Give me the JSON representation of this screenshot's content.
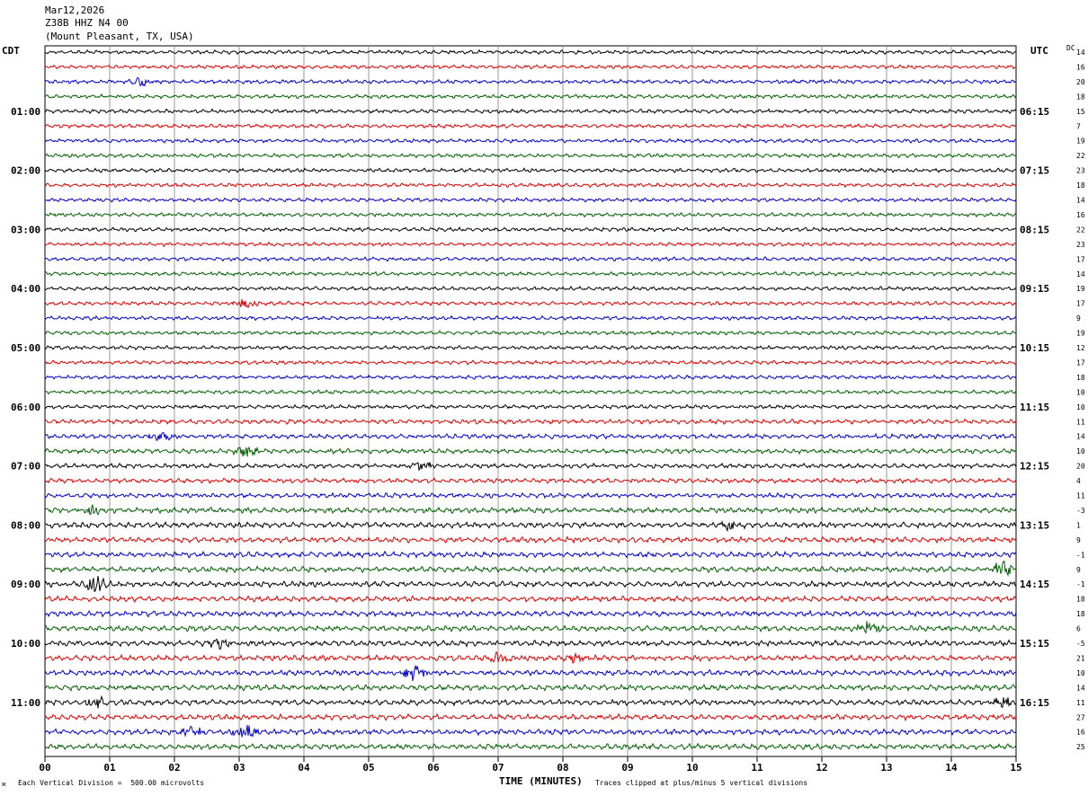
{
  "header": {
    "date": "Mar12,2026",
    "station": "Z38B HHZ N4 00",
    "location": "(Mount Pleasant, TX, USA)"
  },
  "left_timezone": "CDT",
  "right_timezone": "UTC",
  "dc_label": "DC",
  "footer": {
    "scale_note": "Each Vertical Division =  500.00 microvolts",
    "clip_note": "Traces clipped at plus/minus 5 vertical divisions",
    "corner_mark": "⌘"
  },
  "colors": {
    "cycle": [
      "#000000",
      "#e00000",
      "#0000d0",
      "#006000"
    ],
    "grid": "#808080"
  },
  "chart_data": {
    "type": "line",
    "title": "",
    "xlabel": "TIME (MINUTES)",
    "xlim": [
      0,
      15
    ],
    "x_ticks": [
      "00",
      "01",
      "02",
      "03",
      "04",
      "05",
      "06",
      "07",
      "08",
      "09",
      "10",
      "11",
      "12",
      "13",
      "14",
      "15"
    ],
    "num_traces": 48,
    "left_hour_labels": [
      {
        "trace": 4,
        "label": "01:00"
      },
      {
        "trace": 8,
        "label": "02:00"
      },
      {
        "trace": 12,
        "label": "03:00"
      },
      {
        "trace": 16,
        "label": "04:00"
      },
      {
        "trace": 20,
        "label": "05:00"
      },
      {
        "trace": 24,
        "label": "06:00"
      },
      {
        "trace": 28,
        "label": "07:00"
      },
      {
        "trace": 32,
        "label": "08:00"
      },
      {
        "trace": 36,
        "label": "09:00"
      },
      {
        "trace": 40,
        "label": "10:00"
      },
      {
        "trace": 44,
        "label": "11:00"
      }
    ],
    "right_hour_labels": [
      {
        "trace": 4,
        "label": "06:15"
      },
      {
        "trace": 8,
        "label": "07:15"
      },
      {
        "trace": 12,
        "label": "08:15"
      },
      {
        "trace": 16,
        "label": "09:15"
      },
      {
        "trace": 20,
        "label": "10:15"
      },
      {
        "trace": 24,
        "label": "11:15"
      },
      {
        "trace": 28,
        "label": "12:15"
      },
      {
        "trace": 32,
        "label": "13:15"
      },
      {
        "trace": 36,
        "label": "14:15"
      },
      {
        "trace": 40,
        "label": "15:15"
      },
      {
        "trace": 44,
        "label": "16:15"
      }
    ],
    "dc_offsets": [
      "14",
      "16",
      "20",
      "18",
      "15",
      "7",
      "19",
      "22",
      "23",
      "18",
      "14",
      "16",
      "22",
      "23",
      "17",
      "14",
      "19",
      "17",
      "9",
      "19",
      "12",
      "17",
      "18",
      "10",
      "10",
      "11",
      "14",
      "10",
      "20",
      "4",
      "11",
      "-3",
      "1",
      "9",
      "-1",
      "9",
      "-1",
      "18",
      "18",
      "6",
      "-5",
      "21",
      "10",
      "14",
      "11",
      "27",
      "16",
      "25"
    ],
    "events": [
      {
        "trace": 2,
        "minute": 1.5,
        "amp": 1.6
      },
      {
        "trace": 17,
        "minute": 3.1,
        "amp": 1.5
      },
      {
        "trace": 26,
        "minute": 1.8,
        "amp": 1.8
      },
      {
        "trace": 27,
        "minute": 3.1,
        "amp": 2.2
      },
      {
        "trace": 28,
        "minute": 5.8,
        "amp": 1.8
      },
      {
        "trace": 31,
        "minute": 0.7,
        "amp": 2.0
      },
      {
        "trace": 32,
        "minute": 10.6,
        "amp": 2.0
      },
      {
        "trace": 35,
        "minute": 14.8,
        "amp": 2.8
      },
      {
        "trace": 36,
        "minute": 0.8,
        "amp": 3.5
      },
      {
        "trace": 39,
        "minute": 12.7,
        "amp": 2.2
      },
      {
        "trace": 40,
        "minute": 2.7,
        "amp": 1.8
      },
      {
        "trace": 41,
        "minute": 7.0,
        "amp": 1.6
      },
      {
        "trace": 41,
        "minute": 8.2,
        "amp": 1.6
      },
      {
        "trace": 42,
        "minute": 5.7,
        "amp": 3.0
      },
      {
        "trace": 44,
        "minute": 0.8,
        "amp": 2.0
      },
      {
        "trace": 44,
        "minute": 14.8,
        "amp": 2.2
      },
      {
        "trace": 46,
        "minute": 3.1,
        "amp": 2.5
      },
      {
        "trace": 46,
        "minute": 2.3,
        "amp": 2.0
      }
    ]
  }
}
